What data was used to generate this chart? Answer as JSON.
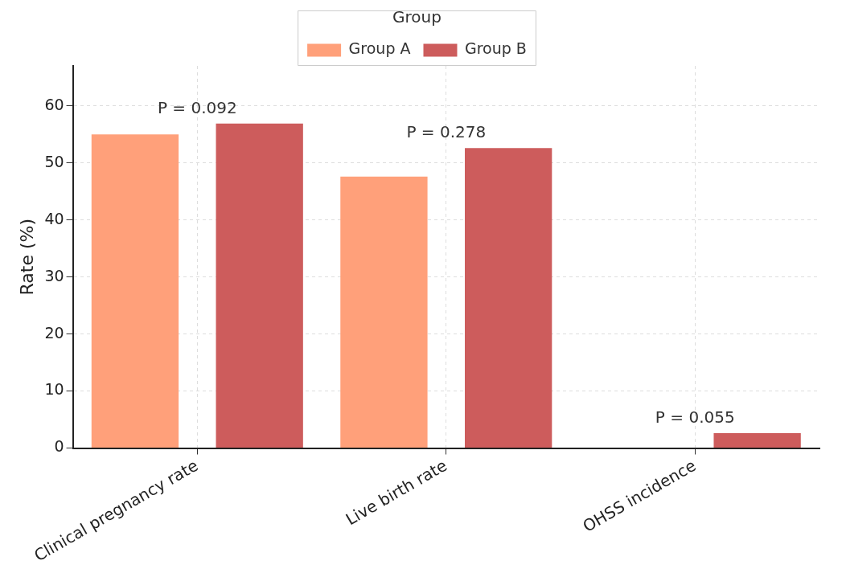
{
  "chart_data": {
    "type": "bar",
    "ylabel": "Rate (%)",
    "legend_title": "Group",
    "categories": [
      "Clinical pregnancy rate",
      "Live birth rate",
      "OHSS incidence"
    ],
    "series": [
      {
        "name": "Group A",
        "color": "#ffa07a",
        "values": [
          55,
          47.6,
          0
        ]
      },
      {
        "name": "Group B",
        "color": "#cd5c5c",
        "values": [
          56.9,
          52.6,
          2.6
        ]
      }
    ],
    "ylim": [
      0,
      67
    ],
    "yticks": [
      0,
      10,
      20,
      30,
      40,
      50,
      60
    ],
    "grid": true,
    "legend": "top",
    "annotations": [
      "P = 0.092",
      "P = 0.278",
      "P = 0.055"
    ]
  }
}
